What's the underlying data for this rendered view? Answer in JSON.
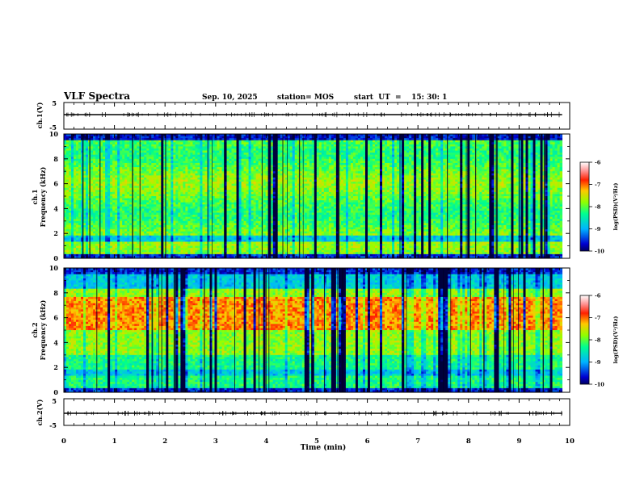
{
  "header": {
    "title": "VLF Spectra",
    "date": "Sep. 10, 2025",
    "station": "station= MOS",
    "start_ut": "start  UT  =    15: 30: 1"
  },
  "chart_data": [
    {
      "type": "line",
      "panel": "ch1-waveform",
      "ylabel": "ch.1(V)",
      "ylim": [
        -5,
        5
      ],
      "yticks": [
        "5",
        "-5"
      ],
      "xlim": [
        0,
        10
      ],
      "x": [
        0,
        9.85
      ],
      "y": [
        0,
        0
      ]
    },
    {
      "type": "heatmap",
      "panel": "ch1-spectrogram",
      "ylabel_top": "ch.1",
      "ylabel": "Frequency (kHz)",
      "ylim": [
        0,
        10
      ],
      "yticks": [
        "0",
        "2",
        "4",
        "6",
        "8",
        "10"
      ],
      "xlim": [
        0,
        10
      ],
      "data_end_min": 9.85,
      "colorbar": {
        "label": "log(PSD)(V²/Hz)",
        "range": [
          -10,
          -6
        ],
        "ticks": [
          "-6",
          "-7",
          "-8",
          "-9",
          "-10"
        ]
      }
    },
    {
      "type": "heatmap",
      "panel": "ch2-spectrogram",
      "ylabel_top": "ch.2",
      "ylabel": "Frequency (kHz)",
      "ylim": [
        0,
        10
      ],
      "yticks": [
        "0",
        "2",
        "4",
        "6",
        "8",
        "10"
      ],
      "xlim": [
        0,
        10
      ],
      "data_end_min": 9.85,
      "colorbar": {
        "label": "log(PSD)(V²/Hz)",
        "range": [
          -10,
          -6
        ],
        "ticks": [
          "-6",
          "-7",
          "-8",
          "-9",
          "-10"
        ]
      }
    },
    {
      "type": "line",
      "panel": "ch2-waveform",
      "ylabel": "ch.2(V)",
      "ylim": [
        -5,
        5
      ],
      "yticks": [
        "5",
        "-5"
      ],
      "xlim": [
        0,
        10
      ],
      "x": [
        0,
        9.85
      ],
      "y": [
        0,
        0
      ]
    }
  ],
  "xaxis": {
    "label": "Time (min)",
    "ticks": [
      "0",
      "1",
      "2",
      "3",
      "4",
      "5",
      "6",
      "7",
      "8",
      "9",
      "10"
    ]
  },
  "colors": {
    "scale": [
      "#000090",
      "#0000ff",
      "#00c8ff",
      "#00ff80",
      "#c8ff00",
      "#ff8000",
      "#ff0000",
      "#ffffff"
    ],
    "waveform": "#000000"
  }
}
